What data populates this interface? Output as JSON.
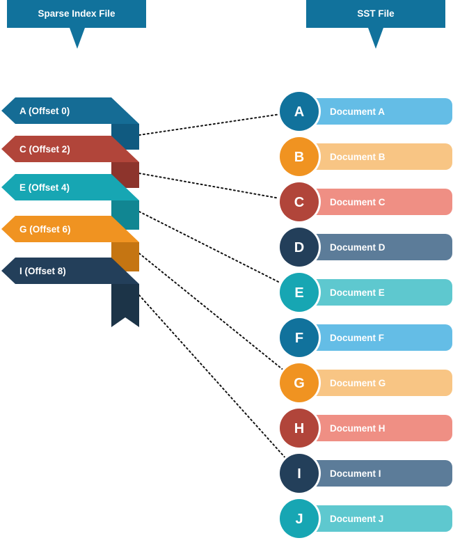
{
  "headers": {
    "index_title": "Sparse Index File",
    "sst_title": "SST File",
    "color": "#11729c"
  },
  "index_entries": [
    {
      "label": "A (Offset 0)",
      "color": "#156c95",
      "fold": "#105a80",
      "target": "A"
    },
    {
      "label": "C (Offset 2)",
      "color": "#b1453a",
      "fold": "#8d342c",
      "target": "C"
    },
    {
      "label": "E (Offset 4)",
      "color": "#17a6b3",
      "fold": "#118692",
      "target": "E"
    },
    {
      "label": "G (Offset 6)",
      "color": "#f09321",
      "fold": "#c57512",
      "target": "G"
    },
    {
      "label": "I (Offset 8)",
      "color": "#233f5a",
      "fold": "#1c3448",
      "target": "I"
    }
  ],
  "documents": [
    {
      "letter": "A",
      "label": "Document A",
      "circle": "#11729c",
      "bar": "#64bde6"
    },
    {
      "letter": "B",
      "label": "Document B",
      "circle": "#f09321",
      "bar": "#f8c584"
    },
    {
      "letter": "C",
      "label": "Document C",
      "circle": "#b1453a",
      "bar": "#ef8f84"
    },
    {
      "letter": "D",
      "label": "Document D",
      "circle": "#233f5a",
      "bar": "#5c7c99"
    },
    {
      "letter": "E",
      "label": "Document E",
      "circle": "#17a6b3",
      "bar": "#5ec8cf"
    },
    {
      "letter": "F",
      "label": "Document F",
      "circle": "#11729c",
      "bar": "#64bde6"
    },
    {
      "letter": "G",
      "label": "Document G",
      "circle": "#f09321",
      "bar": "#f8c584"
    },
    {
      "letter": "H",
      "label": "Document H",
      "circle": "#b1453a",
      "bar": "#ef8f84"
    },
    {
      "letter": "I",
      "label": "Document I",
      "circle": "#233f5a",
      "bar": "#5c7c99"
    },
    {
      "letter": "J",
      "label": "Document J",
      "circle": "#17a6b3",
      "bar": "#5ec8cf"
    }
  ]
}
